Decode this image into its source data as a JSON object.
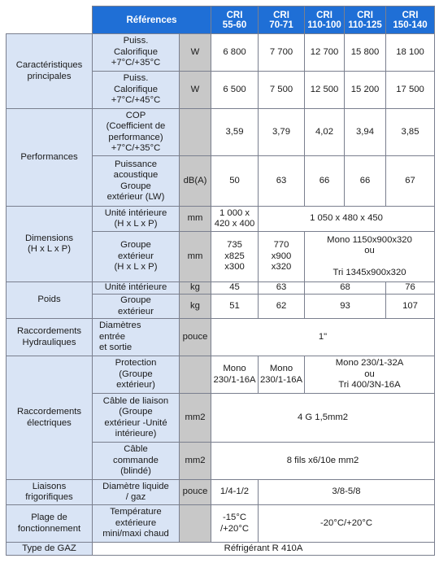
{
  "header": {
    "references_label": "Références",
    "models": [
      {
        "line1": "CRI",
        "line2": "55-60"
      },
      {
        "line1": "CRI",
        "line2": "70-71"
      },
      {
        "line1": "CRI",
        "line2": "110-100"
      },
      {
        "line1": "CRI",
        "line2": "110-125"
      },
      {
        "line1": "CRI",
        "line2": "150-140"
      }
    ]
  },
  "caracteristiques": {
    "label": "Caractéristiques\nprincipales",
    "rows": [
      {
        "label": "Puiss.\nCalorifique\n+7°C/+35°C",
        "unit": "W",
        "values": [
          "6 800",
          "7 700",
          "12 700",
          "15 800",
          "18 100"
        ]
      },
      {
        "label": "Puiss.\nCalorifique\n+7°C/+45°C",
        "unit": "W",
        "values": [
          "6 500",
          "7 500",
          "12 500",
          "15 200",
          "17 500"
        ]
      }
    ]
  },
  "performances": {
    "label": "Performances",
    "cop": {
      "label": "COP\n(Coefficient de\nperformance)\n+7°C/+35°C",
      "unit": "",
      "values": [
        "3,59",
        "3,79",
        "4,02",
        "3,94",
        "3,85"
      ]
    },
    "acoustic": {
      "label": "Puissance\nacoustique\nGroupe\nextérieur (LW)",
      "unit": "dB(A)",
      "values": [
        "50",
        "63",
        "66",
        "66",
        "67"
      ]
    }
  },
  "dimensions": {
    "label": "Dimensions\n(H x L x P)",
    "interieure": {
      "label": "Unité intérieure\n(H x L x P)",
      "unit": "mm",
      "first": "1 000 x\n420 x 400",
      "rest": "1 050 x 480 x 450"
    },
    "exterieur": {
      "label": "Groupe\nextérieur\n(H x L x P)",
      "unit": "mm",
      "v1": "735\nx825\nx300",
      "v2": "770\nx900\nx320",
      "rest": "Mono 1150x900x320\nou\n\nTri 1345x900x320"
    }
  },
  "poids": {
    "label": "Poids",
    "interieure": {
      "label": "Unité intérieure",
      "unit": "kg",
      "v1": "45",
      "v2": "63",
      "v34": "68",
      "v5": "76"
    },
    "exterieur": {
      "label": "Groupe\nextérieur",
      "unit": "kg",
      "v1": "51",
      "v2": "62",
      "v34": "93",
      "v5": "107"
    }
  },
  "hydrauliques": {
    "label": "Raccordements\nHydrauliques",
    "row": {
      "label": "Diamètres\nentrée\net sortie",
      "unit": "pouce",
      "value": "1\""
    }
  },
  "electriques": {
    "label": "Raccordements\nélectriques",
    "protection": {
      "label": "Protection\n(Groupe\nextérieur)",
      "unit": "",
      "v1": "Mono\n230/1-16A",
      "v2": "Mono\n230/1-16A",
      "rest": "Mono 230/1-32A\nou\nTri 400/3N-16A"
    },
    "liaison": {
      "label": "Câble de liaison\n(Groupe\nextérieur -Unité\nintérieure)",
      "unit": "mm2",
      "value": "4 G 1,5mm2"
    },
    "commande": {
      "label": "Câble\ncommande\n(blindé)",
      "unit": "mm2",
      "value": "8 fils x6/10e mm2"
    }
  },
  "frigorifiques": {
    "label": "Liaisons\nfrigorifiques",
    "row": {
      "label": "Diamètre liquide\n/ gaz",
      "unit": "pouce",
      "v1": "1/4-1/2",
      "rest": "3/8-5/8"
    }
  },
  "fonctionnement": {
    "label": "Plage de\nfonctionnement",
    "row": {
      "label": "Température\nextérieure\nmini/maxi chaud",
      "unit": "",
      "v1": "-15°C\n/+20°C",
      "rest": "-20°C/+20°C"
    }
  },
  "gaz": {
    "label": "Type de GAZ",
    "value": "Réfrigérant R 410A"
  }
}
